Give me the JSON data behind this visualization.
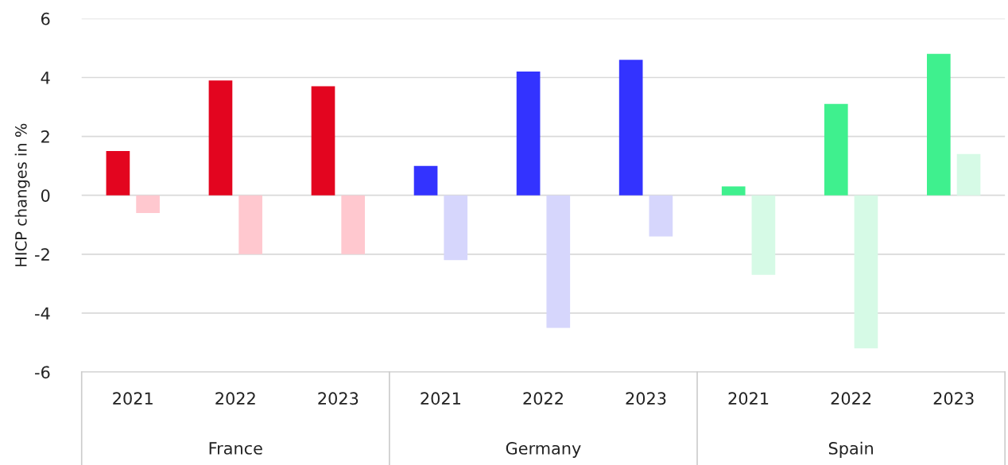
{
  "chart_data": {
    "type": "bar",
    "ylabel": "HICP changes in %",
    "categories": [
      "2021",
      "2022",
      "2023",
      "2021",
      "2022",
      "2023",
      "2021",
      "2022",
      "2023"
    ],
    "series": [
      {
        "colors": [
          "#e3051f",
          "#e3051f",
          "#e3051f",
          "#3333ff",
          "#3333ff",
          "#3333ff",
          "#3ff08e",
          "#3ff08e",
          "#3ff08e"
        ],
        "values": [
          1.5,
          3.9,
          3.7,
          1.0,
          4.2,
          4.6,
          0.3,
          3.1,
          4.8
        ]
      },
      {
        "colors": [
          "#ffc8cf",
          "#ffc8cf",
          "#ffc8cf",
          "#d6d6fc",
          "#d6d6fc",
          "#d6d6fc",
          "#d6fae6",
          "#d6fae6",
          "#d6fae6"
        ],
        "values": [
          -0.6,
          -2.0,
          -2.0,
          -2.2,
          -4.5,
          -1.4,
          -2.7,
          -5.2,
          1.4
        ]
      }
    ],
    "annotations": [
      "France",
      "Germany",
      "Spain"
    ],
    "ylim": [
      -6,
      6
    ],
    "yticks": [
      {
        "value": -6,
        "label": "-6"
      },
      {
        "value": -4,
        "label": "-4"
      },
      {
        "value": -2,
        "label": "-2"
      },
      0,
      2,
      4,
      6
    ],
    "grid": "y",
    "legend": false
  }
}
